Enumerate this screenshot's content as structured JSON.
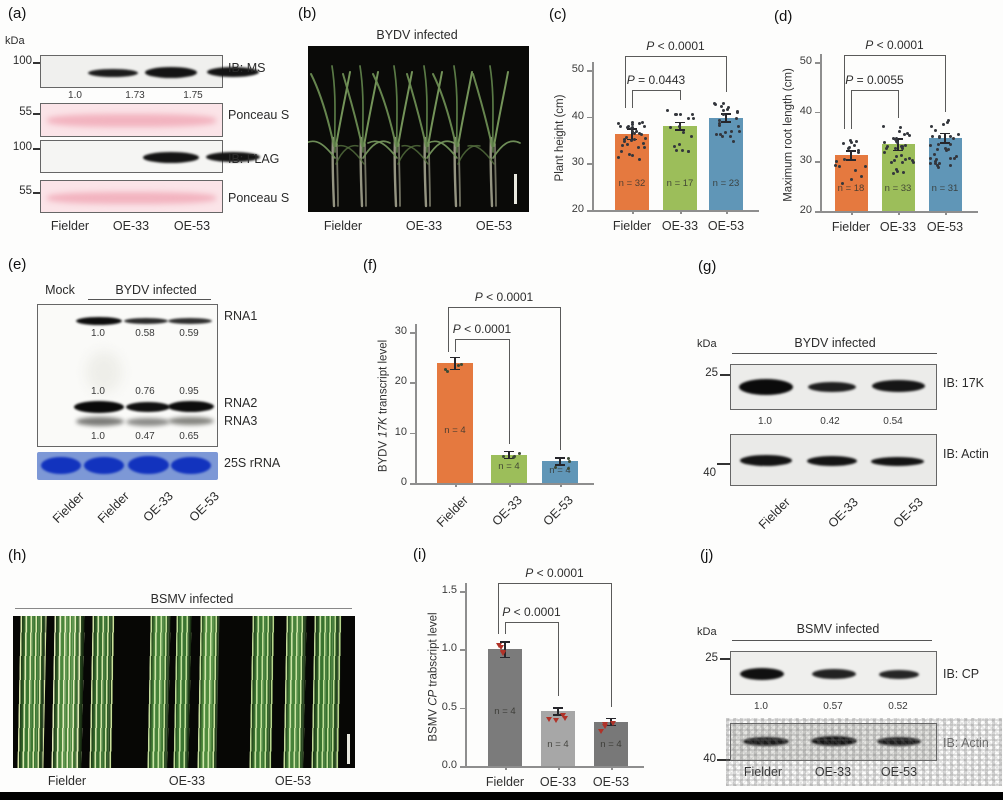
{
  "figure": {
    "panel_tags": {
      "a": "(a)",
      "b": "(b)",
      "c": "(c)",
      "d": "(d)",
      "e": "(e)",
      "f": "(f)",
      "g": "(g)",
      "h": "(h)",
      "i": "(i)",
      "j": "(j)"
    }
  },
  "panel_a": {
    "kda_label": "kDa",
    "markers": [
      "100",
      "55",
      "100",
      "55"
    ],
    "row_labels": [
      "IB: MS",
      "Ponceau S",
      "IB: FLAG",
      "Ponceau S"
    ],
    "band_values": [
      "1.0",
      "1.73",
      "1.75"
    ],
    "lanes": [
      "Fielder",
      "OE-33",
      "OE-53"
    ]
  },
  "panel_b": {
    "title": "BYDV infected",
    "lanes": [
      "Fielder",
      "OE-33",
      "OE-53"
    ]
  },
  "panel_e": {
    "mock_label": "Mock",
    "infected_label": "BYDV infected",
    "rna1_label": "RNA1",
    "rna2_label": "RNA2",
    "rna3_label": "RNA3",
    "rrna_label": "25S rRNA",
    "rna1_values": [
      "1.0",
      "0.58",
      "0.59"
    ],
    "rna2_values": [
      "1.0",
      "0.76",
      "0.95"
    ],
    "rna3_values": [
      "1.0",
      "0.47",
      "0.65"
    ],
    "lanes": [
      "Fielder",
      "Fielder",
      "OE-33",
      "OE-53"
    ]
  },
  "panel_g": {
    "kda_label": "kDa",
    "title": "BYDV infected",
    "marker_top": "25",
    "marker_bottom": "40",
    "blot1_label": "IB: 17K",
    "blot2_label": "IB: Actin",
    "blot1_values": [
      "1.0",
      "0.42",
      "0.54"
    ],
    "lanes": [
      "Fielder",
      "OE-33",
      "OE-53"
    ]
  },
  "panel_h": {
    "title": "BSMV infected",
    "lanes": [
      "Fielder",
      "OE-33",
      "OE-53"
    ]
  },
  "panel_j": {
    "kda_label": "kDa",
    "title": "BSMV infected",
    "marker_top": "25",
    "marker_bottom": "40",
    "blot1_label": "IB: CP",
    "blot2_label": "IB: Actin",
    "blot1_values": [
      "1.0",
      "0.57",
      "0.52"
    ],
    "lanes": [
      "Fielder",
      "OE-33",
      "OE-53"
    ]
  },
  "chart_data": [
    {
      "id": "c",
      "type": "bar",
      "title": "",
      "ylabel": {
        "pre": "Plant height (cm)",
        "italic": "",
        "post": ""
      },
      "ylim": [
        20,
        50
      ],
      "yticks": [
        "20",
        "30",
        "40",
        "50"
      ],
      "categories": [
        "Fielder",
        "OE-33",
        "OE-53"
      ],
      "values": [
        36.3,
        38.0,
        39.8
      ],
      "errors": [
        1.2,
        0.9,
        1.0
      ],
      "colors": [
        "#e5793f",
        "#9cbe5a",
        "#6096b7"
      ],
      "n_labels": [
        "n = 32",
        "n = 17",
        "n = 23"
      ],
      "point_color": "#33363c",
      "point_shape": "dot",
      "pvalues": [
        {
          "pair": [
            0,
            1
          ],
          "text": "P = 0.0443"
        },
        {
          "pair": [
            0,
            2
          ],
          "text": "P < 0.0001"
        }
      ]
    },
    {
      "id": "d",
      "type": "bar",
      "title": "",
      "ylabel": {
        "pre": "Maximum root length (cm)",
        "italic": "",
        "post": ""
      },
      "ylim": [
        20,
        50
      ],
      "yticks": [
        "20",
        "30",
        "40",
        "50"
      ],
      "categories": [
        "Fielder",
        "OE-33",
        "OE-53"
      ],
      "values": [
        31.2,
        33.4,
        34.7
      ],
      "errors": [
        1.0,
        1.3,
        1.1
      ],
      "colors": [
        "#e5793f",
        "#9cbe5a",
        "#6096b7"
      ],
      "n_labels": [
        "n = 18",
        "n = 33",
        "n = 31"
      ],
      "point_color": "#33363c",
      "point_shape": "dot",
      "pvalues": [
        {
          "pair": [
            0,
            1
          ],
          "text": "P = 0.0055"
        },
        {
          "pair": [
            0,
            2
          ],
          "text": "P < 0.0001"
        }
      ]
    },
    {
      "id": "f",
      "type": "bar",
      "title": "",
      "ylabel": {
        "pre": "BYDV ",
        "italic": "17K",
        "post": "  transcript level"
      },
      "ylim": [
        0,
        30
      ],
      "yticks": [
        "0",
        "10",
        "20",
        "30"
      ],
      "categories": [
        "Fielder",
        "OE-33",
        "OE-53"
      ],
      "values": [
        23.8,
        5.6,
        4.3
      ],
      "errors": [
        1.3,
        0.6,
        0.5
      ],
      "colors": [
        "#e5793f",
        "#9cbe5a",
        "#6096b7"
      ],
      "n_labels": [
        "n = 4",
        "n = 4",
        "n = 4"
      ],
      "point_color": "#3c4a35",
      "point_shape": "dot",
      "pvalues": [
        {
          "pair": [
            0,
            1
          ],
          "text": "P < 0.0001"
        },
        {
          "pair": [
            0,
            2
          ],
          "text": "P < 0.0001"
        }
      ]
    },
    {
      "id": "i",
      "type": "bar",
      "title": "",
      "ylabel": {
        "pre": "BSMV ",
        "italic": "CP",
        "post": " trabscript level"
      },
      "ylim": [
        0,
        1.5
      ],
      "yticks": [
        "0.0",
        "0.5",
        "1.0",
        "1.5"
      ],
      "categories": [
        "Fielder",
        "OE-33",
        "OE-53"
      ],
      "values": [
        1.0,
        0.47,
        0.38
      ],
      "errors": [
        0.07,
        0.03,
        0.03
      ],
      "colors": [
        "#7b7b7b",
        "#a7a7a7",
        "#787878"
      ],
      "n_labels": [
        "n = 4",
        "n = 4",
        "n = 4"
      ],
      "point_color": "#b03228",
      "point_shape": "tri",
      "pvalues": [
        {
          "pair": [
            0,
            1
          ],
          "text": "P < 0.0001"
        },
        {
          "pair": [
            0,
            2
          ],
          "text": "P < 0.0001"
        }
      ]
    }
  ]
}
